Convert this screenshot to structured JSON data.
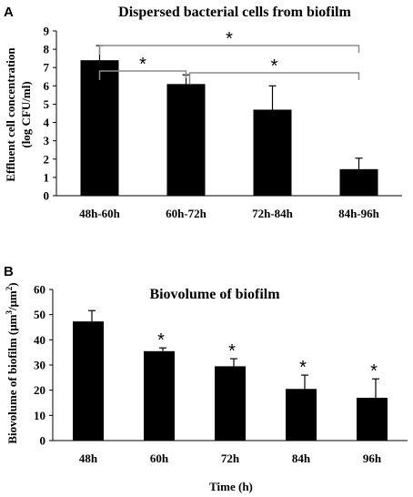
{
  "chart_data": [
    {
      "type": "bar",
      "panel": "A",
      "title": "Dispersed bacterial cells from biofilm",
      "xlabel": "",
      "ylabel": "Effluent cell concentration",
      "ylabel_line2": "(log CFU/ml)",
      "categories": [
        "48h-60h",
        "60h-72h",
        "72h-84h",
        "84h-96h"
      ],
      "values": [
        7.4,
        6.1,
        4.7,
        1.45
      ],
      "errors": [
        0.8,
        0.5,
        1.3,
        0.6
      ],
      "ylim": [
        0,
        9
      ],
      "yticks": [
        "0",
        "1",
        "2",
        "3",
        "4",
        "5",
        "6",
        "7",
        "8",
        "9"
      ],
      "grid": false,
      "annotations": [
        {
          "type": "bracket",
          "from": 0,
          "to": 1,
          "label": "*"
        },
        {
          "type": "bracket",
          "from": 0,
          "to": 3,
          "label": "*"
        },
        {
          "type": "bracket",
          "from": 1,
          "to": 3,
          "label": "*"
        }
      ],
      "bar_color": "#000000",
      "bracket_color": "#8c8c8c"
    },
    {
      "type": "bar",
      "panel": "B",
      "title": "Biovolume of biofilm",
      "xlabel": "Time (h)",
      "ylabel_parts": [
        "Biovolume of biofilm (μm",
        "3",
        "/μm",
        "2",
        ")"
      ],
      "categories": [
        "48h",
        "60h",
        "72h",
        "84h",
        "96h"
      ],
      "values": [
        47.3,
        35.5,
        29.5,
        20.5,
        17.0
      ],
      "errors": [
        4.3,
        1.3,
        3.0,
        5.5,
        7.5
      ],
      "significance": [
        "",
        "*",
        "*",
        "*",
        "*"
      ],
      "ylim": [
        0,
        60
      ],
      "yticks": [
        "0",
        "10",
        "20",
        "30",
        "40",
        "50",
        "60"
      ],
      "grid": false,
      "bar_color": "#000000"
    }
  ]
}
